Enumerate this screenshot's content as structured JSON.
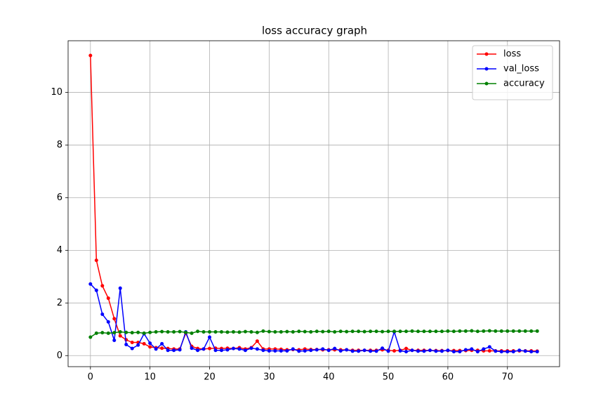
{
  "chart_data": {
    "type": "line",
    "title": "loss accuracy graph",
    "x": [
      0,
      1,
      2,
      3,
      4,
      5,
      6,
      7,
      8,
      9,
      10,
      11,
      12,
      13,
      14,
      15,
      16,
      17,
      18,
      19,
      20,
      21,
      22,
      23,
      24,
      25,
      26,
      27,
      28,
      29,
      30,
      31,
      32,
      33,
      34,
      35,
      36,
      37,
      38,
      39,
      40,
      41,
      42,
      43,
      44,
      45,
      46,
      47,
      48,
      49,
      50,
      51,
      52,
      53,
      54,
      55,
      56,
      57,
      58,
      59,
      60,
      61,
      62,
      63,
      64,
      65,
      66,
      67,
      68,
      69,
      70,
      71,
      72,
      73,
      74,
      75
    ],
    "series": [
      {
        "name": "loss",
        "color": "#ff0000",
        "values": [
          11.4,
          3.62,
          2.65,
          2.18,
          1.4,
          0.75,
          0.6,
          0.5,
          0.5,
          0.45,
          0.33,
          0.3,
          0.28,
          0.27,
          0.25,
          0.25,
          0.85,
          0.35,
          0.27,
          0.25,
          0.27,
          0.28,
          0.27,
          0.28,
          0.27,
          0.3,
          0.25,
          0.3,
          0.55,
          0.25,
          0.25,
          0.25,
          0.24,
          0.22,
          0.23,
          0.22,
          0.25,
          0.23,
          0.23,
          0.22,
          0.22,
          0.22,
          0.22,
          0.22,
          0.2,
          0.2,
          0.2,
          0.2,
          0.2,
          0.22,
          0.2,
          0.18,
          0.2,
          0.27,
          0.2,
          0.2,
          0.2,
          0.2,
          0.19,
          0.19,
          0.19,
          0.19,
          0.19,
          0.19,
          0.2,
          0.2,
          0.18,
          0.18,
          0.18,
          0.18,
          0.18,
          0.18,
          0.18,
          0.18,
          0.18,
          0.17
        ]
      },
      {
        "name": "val_loss",
        "color": "#0000ff",
        "values": [
          2.72,
          2.48,
          1.57,
          1.28,
          0.58,
          2.56,
          0.42,
          0.27,
          0.4,
          0.83,
          0.47,
          0.25,
          0.45,
          0.2,
          0.2,
          0.22,
          0.9,
          0.28,
          0.2,
          0.25,
          0.7,
          0.2,
          0.2,
          0.22,
          0.27,
          0.25,
          0.2,
          0.28,
          0.25,
          0.2,
          0.18,
          0.18,
          0.18,
          0.18,
          0.25,
          0.17,
          0.18,
          0.2,
          0.22,
          0.25,
          0.2,
          0.27,
          0.18,
          0.22,
          0.17,
          0.17,
          0.2,
          0.17,
          0.17,
          0.28,
          0.17,
          0.9,
          0.18,
          0.15,
          0.2,
          0.17,
          0.17,
          0.2,
          0.17,
          0.17,
          0.2,
          0.15,
          0.15,
          0.22,
          0.25,
          0.15,
          0.25,
          0.33,
          0.17,
          0.15,
          0.15,
          0.15,
          0.2,
          0.17,
          0.15,
          0.15
        ]
      },
      {
        "name": "accuracy",
        "color": "#008000",
        "values": [
          0.7,
          0.85,
          0.87,
          0.85,
          0.87,
          0.9,
          0.88,
          0.87,
          0.88,
          0.85,
          0.88,
          0.9,
          0.91,
          0.9,
          0.9,
          0.91,
          0.88,
          0.85,
          0.92,
          0.9,
          0.9,
          0.9,
          0.9,
          0.89,
          0.9,
          0.89,
          0.91,
          0.9,
          0.88,
          0.93,
          0.91,
          0.9,
          0.9,
          0.91,
          0.9,
          0.92,
          0.91,
          0.9,
          0.92,
          0.91,
          0.92,
          0.9,
          0.92,
          0.91,
          0.92,
          0.92,
          0.91,
          0.92,
          0.92,
          0.91,
          0.92,
          0.92,
          0.92,
          0.92,
          0.93,
          0.92,
          0.92,
          0.92,
          0.92,
          0.92,
          0.93,
          0.92,
          0.93,
          0.93,
          0.94,
          0.92,
          0.93,
          0.94,
          0.93,
          0.93,
          0.93,
          0.93,
          0.93,
          0.93,
          0.93,
          0.93
        ]
      }
    ],
    "xlim": [
      -3.75,
      78.75
    ],
    "ylim": [
      -0.42,
      11.96
    ],
    "xticks": [
      0,
      10,
      20,
      30,
      40,
      50,
      60,
      70
    ],
    "yticks": [
      0,
      2,
      4,
      6,
      8,
      10
    ],
    "grid": true,
    "legend": "upper right"
  }
}
